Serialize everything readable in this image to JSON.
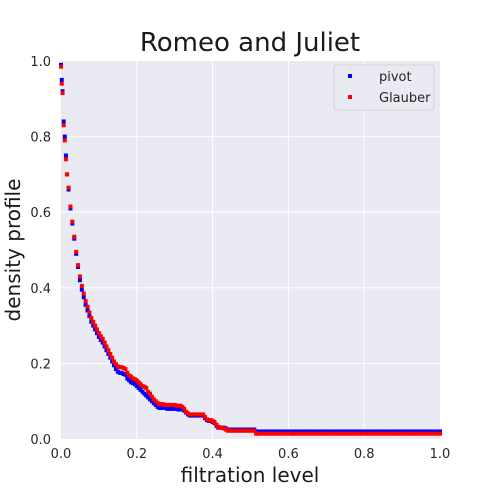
{
  "chart_data": {
    "type": "scatter",
    "title": "Romeo and Juliet",
    "xlabel": "filtration level",
    "ylabel": "density profile",
    "xlim": [
      0.0,
      1.0
    ],
    "ylim": [
      0.0,
      1.0
    ],
    "xticks": [
      "0.0",
      "0.2",
      "0.4",
      "0.6",
      "0.8",
      "1.0"
    ],
    "yticks": [
      "0.0",
      "0.2",
      "0.4",
      "0.6",
      "0.8",
      "1.0"
    ],
    "grid": true,
    "legend_position": "top-right",
    "series": [
      {
        "name": "pivot",
        "color": "#0000ff",
        "points": [
          [
            0.0,
            0.99
          ],
          [
            0.002,
            0.95
          ],
          [
            0.004,
            0.92
          ],
          [
            0.007,
            0.84
          ],
          [
            0.01,
            0.8
          ],
          [
            0.013,
            0.75
          ],
          [
            0.016,
            0.7
          ],
          [
            0.02,
            0.66
          ],
          [
            0.025,
            0.61
          ],
          [
            0.03,
            0.57
          ],
          [
            0.035,
            0.53
          ],
          [
            0.04,
            0.49
          ],
          [
            0.045,
            0.455
          ],
          [
            0.05,
            0.42
          ],
          [
            0.055,
            0.395
          ],
          [
            0.06,
            0.375
          ],
          [
            0.065,
            0.355
          ],
          [
            0.07,
            0.34
          ],
          [
            0.075,
            0.325
          ],
          [
            0.08,
            0.31
          ],
          [
            0.085,
            0.3
          ],
          [
            0.09,
            0.29
          ],
          [
            0.095,
            0.28
          ],
          [
            0.1,
            0.27
          ],
          [
            0.105,
            0.262
          ],
          [
            0.11,
            0.255
          ],
          [
            0.115,
            0.245
          ],
          [
            0.12,
            0.235
          ],
          [
            0.125,
            0.225
          ],
          [
            0.13,
            0.215
          ],
          [
            0.135,
            0.205
          ],
          [
            0.14,
            0.195
          ],
          [
            0.145,
            0.185
          ],
          [
            0.15,
            0.178
          ],
          [
            0.155,
            0.175
          ],
          [
            0.16,
            0.175
          ],
          [
            0.165,
            0.172
          ],
          [
            0.17,
            0.17
          ],
          [
            0.175,
            0.16
          ],
          [
            0.18,
            0.155
          ],
          [
            0.185,
            0.15
          ],
          [
            0.19,
            0.148
          ],
          [
            0.195,
            0.145
          ],
          [
            0.2,
            0.14
          ],
          [
            0.205,
            0.135
          ],
          [
            0.21,
            0.13
          ],
          [
            0.215,
            0.125
          ],
          [
            0.22,
            0.12
          ],
          [
            0.225,
            0.115
          ],
          [
            0.23,
            0.11
          ],
          [
            0.235,
            0.105
          ],
          [
            0.24,
            0.1
          ],
          [
            0.245,
            0.095
          ],
          [
            0.25,
            0.09
          ],
          [
            0.255,
            0.085
          ],
          [
            0.26,
            0.082
          ],
          [
            0.265,
            0.082
          ],
          [
            0.27,
            0.082
          ],
          [
            0.275,
            0.082
          ],
          [
            0.28,
            0.08
          ],
          [
            0.285,
            0.08
          ],
          [
            0.29,
            0.08
          ],
          [
            0.295,
            0.08
          ],
          [
            0.3,
            0.08
          ],
          [
            0.305,
            0.08
          ],
          [
            0.31,
            0.078
          ],
          [
            0.315,
            0.078
          ],
          [
            0.32,
            0.078
          ],
          [
            0.325,
            0.075
          ],
          [
            0.33,
            0.07
          ],
          [
            0.335,
            0.065
          ],
          [
            0.34,
            0.062
          ],
          [
            0.345,
            0.062
          ],
          [
            0.35,
            0.062
          ],
          [
            0.355,
            0.062
          ],
          [
            0.36,
            0.062
          ],
          [
            0.365,
            0.062
          ],
          [
            0.37,
            0.062
          ],
          [
            0.375,
            0.062
          ],
          [
            0.38,
            0.055
          ],
          [
            0.385,
            0.05
          ],
          [
            0.39,
            0.048
          ],
          [
            0.395,
            0.048
          ],
          [
            0.4,
            0.045
          ],
          [
            0.405,
            0.042
          ],
          [
            0.41,
            0.035
          ],
          [
            0.415,
            0.03
          ],
          [
            0.42,
            0.03
          ],
          [
            0.425,
            0.03
          ],
          [
            0.43,
            0.03
          ],
          [
            0.435,
            0.028
          ],
          [
            0.44,
            0.025
          ],
          [
            0.445,
            0.025
          ],
          [
            0.45,
            0.025
          ],
          [
            0.455,
            0.025
          ],
          [
            0.46,
            0.025
          ],
          [
            0.465,
            0.025
          ],
          [
            0.47,
            0.025
          ],
          [
            0.475,
            0.025
          ],
          [
            0.48,
            0.025
          ],
          [
            0.485,
            0.025
          ],
          [
            0.49,
            0.025
          ],
          [
            0.495,
            0.025
          ],
          [
            0.5,
            0.025
          ],
          [
            0.505,
            0.025
          ],
          [
            0.51,
            0.025
          ],
          [
            0.515,
            0.02
          ],
          [
            0.52,
            0.02
          ],
          [
            0.53,
            0.02
          ],
          [
            0.54,
            0.02
          ],
          [
            0.55,
            0.02
          ],
          [
            0.56,
            0.02
          ],
          [
            0.57,
            0.02
          ],
          [
            0.58,
            0.02
          ],
          [
            0.59,
            0.02
          ],
          [
            0.6,
            0.02
          ],
          [
            0.61,
            0.02
          ],
          [
            0.62,
            0.02
          ],
          [
            0.63,
            0.02
          ],
          [
            0.64,
            0.02
          ],
          [
            0.65,
            0.02
          ],
          [
            0.66,
            0.02
          ],
          [
            0.67,
            0.02
          ],
          [
            0.68,
            0.02
          ],
          [
            0.69,
            0.02
          ],
          [
            0.7,
            0.02
          ],
          [
            0.71,
            0.02
          ],
          [
            0.72,
            0.02
          ],
          [
            0.73,
            0.02
          ],
          [
            0.74,
            0.02
          ],
          [
            0.75,
            0.02
          ],
          [
            0.76,
            0.02
          ],
          [
            0.77,
            0.02
          ],
          [
            0.78,
            0.02
          ],
          [
            0.79,
            0.02
          ],
          [
            0.8,
            0.02
          ],
          [
            0.81,
            0.02
          ],
          [
            0.82,
            0.02
          ],
          [
            0.83,
            0.02
          ],
          [
            0.84,
            0.02
          ],
          [
            0.85,
            0.02
          ],
          [
            0.86,
            0.02
          ],
          [
            0.87,
            0.02
          ],
          [
            0.88,
            0.02
          ],
          [
            0.89,
            0.02
          ],
          [
            0.9,
            0.02
          ],
          [
            0.91,
            0.02
          ],
          [
            0.92,
            0.02
          ],
          [
            0.93,
            0.02
          ],
          [
            0.94,
            0.02
          ],
          [
            0.95,
            0.02
          ],
          [
            0.96,
            0.02
          ],
          [
            0.97,
            0.02
          ],
          [
            0.98,
            0.02
          ],
          [
            0.99,
            0.02
          ],
          [
            1.0,
            0.02
          ]
        ]
      },
      {
        "name": "Glauber",
        "color": "#ff0000",
        "points": [
          [
            0.0,
            0.985
          ],
          [
            0.002,
            0.94
          ],
          [
            0.004,
            0.915
          ],
          [
            0.007,
            0.83
          ],
          [
            0.01,
            0.79
          ],
          [
            0.013,
            0.74
          ],
          [
            0.016,
            0.7
          ],
          [
            0.02,
            0.665
          ],
          [
            0.025,
            0.615
          ],
          [
            0.03,
            0.575
          ],
          [
            0.035,
            0.535
          ],
          [
            0.04,
            0.495
          ],
          [
            0.045,
            0.46
          ],
          [
            0.05,
            0.43
          ],
          [
            0.055,
            0.405
          ],
          [
            0.06,
            0.385
          ],
          [
            0.065,
            0.365
          ],
          [
            0.07,
            0.35
          ],
          [
            0.075,
            0.335
          ],
          [
            0.08,
            0.32
          ],
          [
            0.085,
            0.31
          ],
          [
            0.09,
            0.3
          ],
          [
            0.095,
            0.29
          ],
          [
            0.1,
            0.28
          ],
          [
            0.105,
            0.272
          ],
          [
            0.11,
            0.265
          ],
          [
            0.115,
            0.255
          ],
          [
            0.12,
            0.245
          ],
          [
            0.125,
            0.235
          ],
          [
            0.13,
            0.225
          ],
          [
            0.135,
            0.215
          ],
          [
            0.14,
            0.205
          ],
          [
            0.145,
            0.198
          ],
          [
            0.15,
            0.192
          ],
          [
            0.155,
            0.19
          ],
          [
            0.16,
            0.19
          ],
          [
            0.165,
            0.188
          ],
          [
            0.17,
            0.185
          ],
          [
            0.175,
            0.175
          ],
          [
            0.18,
            0.168
          ],
          [
            0.185,
            0.165
          ],
          [
            0.19,
            0.16
          ],
          [
            0.195,
            0.158
          ],
          [
            0.2,
            0.155
          ],
          [
            0.205,
            0.15
          ],
          [
            0.21,
            0.145
          ],
          [
            0.215,
            0.14
          ],
          [
            0.22,
            0.138
          ],
          [
            0.225,
            0.135
          ],
          [
            0.23,
            0.125
          ],
          [
            0.235,
            0.12
          ],
          [
            0.24,
            0.112
          ],
          [
            0.245,
            0.105
          ],
          [
            0.25,
            0.1
          ],
          [
            0.255,
            0.095
          ],
          [
            0.26,
            0.092
          ],
          [
            0.265,
            0.092
          ],
          [
            0.27,
            0.092
          ],
          [
            0.275,
            0.09
          ],
          [
            0.28,
            0.09
          ],
          [
            0.285,
            0.09
          ],
          [
            0.29,
            0.09
          ],
          [
            0.295,
            0.09
          ],
          [
            0.3,
            0.09
          ],
          [
            0.305,
            0.088
          ],
          [
            0.31,
            0.088
          ],
          [
            0.315,
            0.088
          ],
          [
            0.32,
            0.085
          ],
          [
            0.325,
            0.08
          ],
          [
            0.33,
            0.072
          ],
          [
            0.335,
            0.068
          ],
          [
            0.34,
            0.065
          ],
          [
            0.345,
            0.065
          ],
          [
            0.35,
            0.065
          ],
          [
            0.355,
            0.065
          ],
          [
            0.36,
            0.065
          ],
          [
            0.365,
            0.065
          ],
          [
            0.37,
            0.065
          ],
          [
            0.375,
            0.065
          ],
          [
            0.38,
            0.058
          ],
          [
            0.385,
            0.052
          ],
          [
            0.39,
            0.05
          ],
          [
            0.395,
            0.05
          ],
          [
            0.4,
            0.048
          ],
          [
            0.405,
            0.045
          ],
          [
            0.41,
            0.038
          ],
          [
            0.415,
            0.032
          ],
          [
            0.42,
            0.03
          ],
          [
            0.425,
            0.03
          ],
          [
            0.43,
            0.028
          ],
          [
            0.435,
            0.025
          ],
          [
            0.44,
            0.022
          ],
          [
            0.445,
            0.022
          ],
          [
            0.45,
            0.022
          ],
          [
            0.455,
            0.022
          ],
          [
            0.46,
            0.022
          ],
          [
            0.465,
            0.022
          ],
          [
            0.47,
            0.022
          ],
          [
            0.475,
            0.022
          ],
          [
            0.48,
            0.022
          ],
          [
            0.485,
            0.022
          ],
          [
            0.49,
            0.022
          ],
          [
            0.495,
            0.022
          ],
          [
            0.5,
            0.022
          ],
          [
            0.505,
            0.022
          ],
          [
            0.51,
            0.022
          ],
          [
            0.515,
            0.014
          ],
          [
            0.52,
            0.014
          ],
          [
            0.53,
            0.014
          ],
          [
            0.54,
            0.014
          ],
          [
            0.55,
            0.014
          ],
          [
            0.56,
            0.014
          ],
          [
            0.57,
            0.014
          ],
          [
            0.58,
            0.014
          ],
          [
            0.59,
            0.014
          ],
          [
            0.6,
            0.014
          ],
          [
            0.61,
            0.014
          ],
          [
            0.62,
            0.014
          ],
          [
            0.63,
            0.014
          ],
          [
            0.64,
            0.014
          ],
          [
            0.65,
            0.014
          ],
          [
            0.66,
            0.014
          ],
          [
            0.67,
            0.014
          ],
          [
            0.68,
            0.014
          ],
          [
            0.69,
            0.014
          ],
          [
            0.7,
            0.014
          ],
          [
            0.71,
            0.014
          ],
          [
            0.72,
            0.014
          ],
          [
            0.73,
            0.014
          ],
          [
            0.74,
            0.014
          ],
          [
            0.75,
            0.014
          ],
          [
            0.76,
            0.014
          ],
          [
            0.77,
            0.014
          ],
          [
            0.78,
            0.014
          ],
          [
            0.79,
            0.014
          ],
          [
            0.8,
            0.014
          ],
          [
            0.81,
            0.014
          ],
          [
            0.82,
            0.014
          ],
          [
            0.83,
            0.014
          ],
          [
            0.84,
            0.014
          ],
          [
            0.85,
            0.014
          ],
          [
            0.86,
            0.014
          ],
          [
            0.87,
            0.014
          ],
          [
            0.88,
            0.014
          ],
          [
            0.89,
            0.014
          ],
          [
            0.9,
            0.014
          ],
          [
            0.91,
            0.014
          ],
          [
            0.92,
            0.014
          ],
          [
            0.93,
            0.014
          ],
          [
            0.94,
            0.014
          ],
          [
            0.95,
            0.014
          ],
          [
            0.96,
            0.014
          ],
          [
            0.97,
            0.014
          ],
          [
            0.98,
            0.014
          ],
          [
            0.99,
            0.014
          ],
          [
            1.0,
            0.014
          ]
        ]
      }
    ]
  }
}
